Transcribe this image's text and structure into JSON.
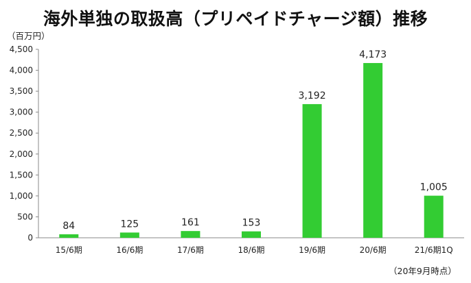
{
  "chart_data": {
    "type": "bar",
    "title": "海外単独の取扱高（プリペイドチャージ額）推移",
    "unit_label": "（百万円）",
    "note": "（20年9月時点）",
    "categories": [
      "15/6期",
      "16/6期",
      "17/6期",
      "18/6期",
      "19/6期",
      "20/6期",
      "21/6期1Q"
    ],
    "values": [
      84,
      125,
      161,
      153,
      3192,
      4173,
      1005
    ],
    "data_labels": [
      "84",
      "125",
      "161",
      "153",
      "3,192",
      "4,173",
      "1,005"
    ],
    "ylim": [
      0,
      4500
    ],
    "yticks": [
      0,
      500,
      1000,
      1500,
      2000,
      2500,
      3000,
      3500,
      4000,
      4500
    ],
    "ytick_labels": [
      "0",
      "500",
      "1,000",
      "1,500",
      "2,000",
      "2,500",
      "3,000",
      "3,500",
      "4,000",
      "4,500"
    ],
    "bar_color": "#33cc33",
    "grid": false,
    "legend": "none"
  }
}
